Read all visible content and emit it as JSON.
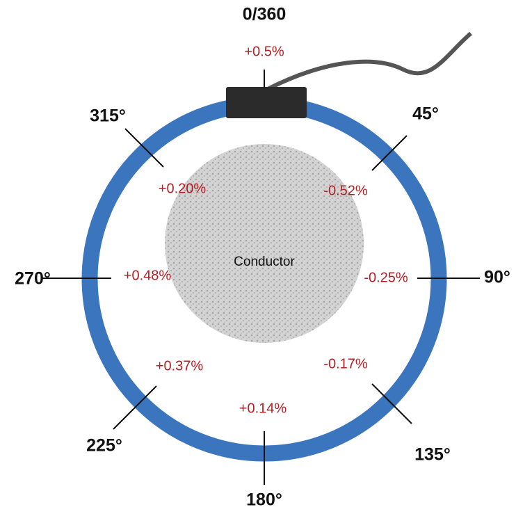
{
  "positions": [
    {
      "angle": "0/360",
      "error": "+0.5%"
    },
    {
      "angle": "45°",
      "error": "-0.52%"
    },
    {
      "angle": "90°",
      "error": "-0.25%"
    },
    {
      "angle": "135°",
      "error": "-0.17%"
    },
    {
      "angle": "180°",
      "error": "+0.14%"
    },
    {
      "angle": "225°",
      "error": "+0.37%"
    },
    {
      "angle": "270°",
      "error": "+0.48%"
    },
    {
      "angle": "315°",
      "error": "+0.20%"
    }
  ],
  "conductor": "Conductor"
}
